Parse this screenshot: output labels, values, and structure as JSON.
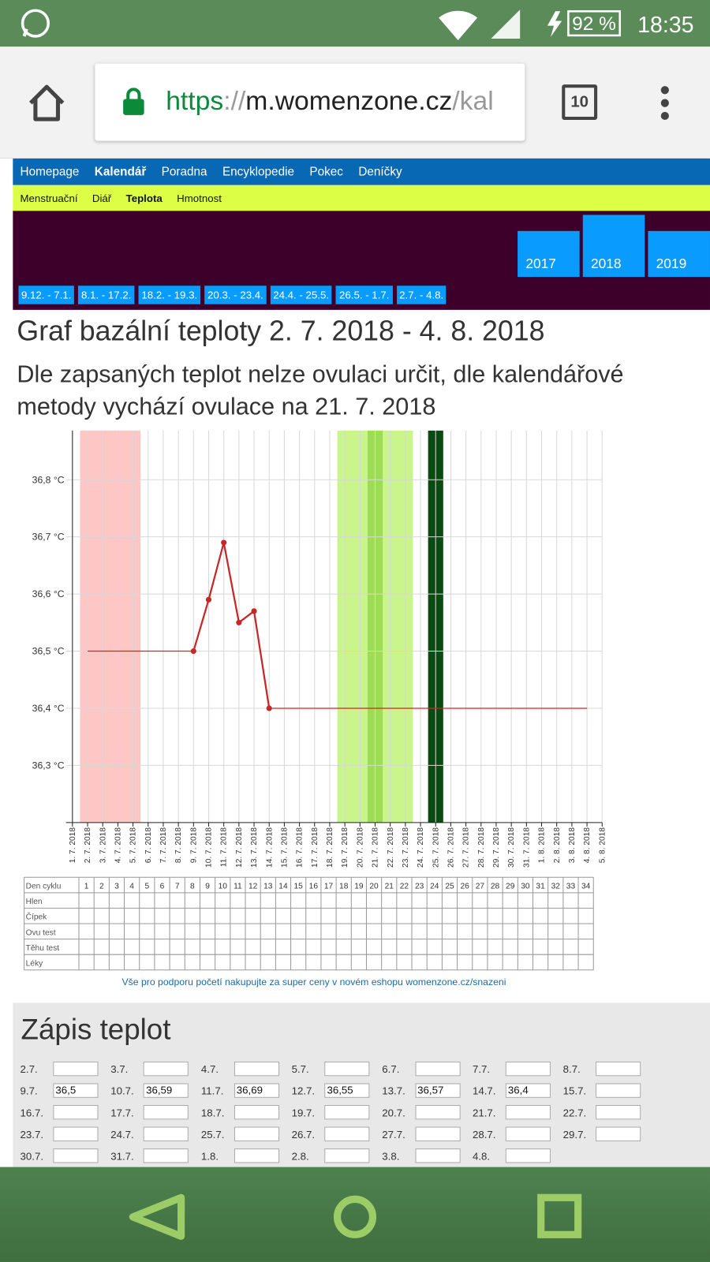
{
  "status_bar": {
    "battery": "92 %",
    "time": "18:35"
  },
  "browser": {
    "url": {
      "scheme": "https",
      "separator": "://",
      "host": "m.womenzone.cz",
      "path": "/kal"
    },
    "tabs": "10"
  },
  "nav": [
    {
      "label": "Homepage"
    },
    {
      "label": "Kalendář",
      "active": true
    },
    {
      "label": "Poradna"
    },
    {
      "label": "Encyklopedie"
    },
    {
      "label": "Pokec"
    },
    {
      "label": "Deníčky"
    }
  ],
  "subnav": [
    {
      "label": "Menstruační"
    },
    {
      "label": "Diář"
    },
    {
      "label": "Teplota",
      "active": true
    },
    {
      "label": "Hmotnost"
    }
  ],
  "years": [
    {
      "label": "2017"
    },
    {
      "label": "2018",
      "active": true
    },
    {
      "label": "2019"
    }
  ],
  "ranges": [
    "9.12. - 7.1.",
    "8.1. - 17.2.",
    "18.2. - 19.3.",
    "20.3. - 23.4.",
    "24.4. - 25.5.",
    "26.5. - 1.7.",
    "2.7. - 4.8."
  ],
  "title": "Graf bazální teploty 2. 7. 2018 - 4. 8. 2018",
  "subtitle": "Dle zapsaných teplot nelze ovulaci určit, dle kalendářové metody vychází ovulace na 21. 7. 2018",
  "chart_data": {
    "type": "line",
    "categories": [
      "1. 7. 2018",
      "2. 7. 2018",
      "3. 7. 2018",
      "4. 7. 2018",
      "5. 7. 2018",
      "6. 7. 2018",
      "7. 7. 2018",
      "8. 7. 2018",
      "9. 7. 2018",
      "10. 7. 2018",
      "11. 7. 2018",
      "12. 7. 2018",
      "13. 7. 2018",
      "14. 7. 2018",
      "15. 7. 2018",
      "16. 7. 2018",
      "17. 7. 2018",
      "18. 7. 2018",
      "19. 7. 2018",
      "20. 7. 2018",
      "21. 7. 2018",
      "22. 7. 2018",
      "23. 7. 2018",
      "24. 7. 2018",
      "25. 7. 2018",
      "26. 7. 2018",
      "27. 7. 2018",
      "28. 7. 2018",
      "29. 7. 2018",
      "30. 7. 2018",
      "31. 7. 2018",
      "1. 8. 2018",
      "2. 8. 2018",
      "3. 8. 2018",
      "4. 8. 2018",
      "5. 8. 2018"
    ],
    "series": [
      {
        "kind": "line",
        "color": "#c62828",
        "values": [
          null,
          36.5,
          36.5,
          36.5,
          36.5,
          36.5,
          36.5,
          36.5,
          36.5,
          36.59,
          36.69,
          36.55,
          36.57,
          36.4,
          36.4,
          36.4,
          36.4,
          36.4,
          36.4,
          36.4,
          36.4,
          36.4,
          36.4,
          36.4,
          36.4,
          36.4,
          36.4,
          36.4,
          36.4,
          36.4,
          36.4,
          36.4,
          36.4,
          36.4,
          36.4,
          null
        ]
      },
      {
        "kind": "points",
        "color": "#c62828",
        "values": [
          null,
          null,
          null,
          null,
          null,
          null,
          null,
          null,
          36.5,
          36.59,
          36.69,
          36.55,
          36.57,
          36.4,
          null,
          null,
          null,
          null,
          null,
          null,
          null,
          null,
          null,
          null,
          null,
          null,
          null,
          null,
          null,
          null,
          null,
          null,
          null,
          null,
          null,
          null
        ]
      }
    ],
    "bands": [
      {
        "from": 1,
        "to": 4,
        "color": "#ffc6c6"
      },
      {
        "from": 18,
        "to": 22,
        "color": "#c9f58c"
      },
      {
        "from": 20,
        "to": 20,
        "color": "#9fdc55"
      },
      {
        "from": 24,
        "to": 24,
        "color": "#0b4a10"
      }
    ],
    "ylim": [
      36.2,
      36.886
    ],
    "yticks": [
      {
        "value": 36.3,
        "label": "36,3 °C"
      },
      {
        "value": 36.4,
        "label": "36,4 °C"
      },
      {
        "value": 36.5,
        "label": "36,5 °C"
      },
      {
        "value": 36.6,
        "label": "36,6 °C"
      },
      {
        "value": 36.7,
        "label": "36,7 °C"
      },
      {
        "value": 36.8,
        "label": "36,8 °C"
      }
    ],
    "grid": true
  },
  "cycle_table": {
    "row_labels": [
      "Den cyklu",
      "Hlen",
      "Čípek",
      "Ovu test",
      "Těhu test",
      "Léky"
    ],
    "days": [
      1,
      2,
      3,
      4,
      5,
      6,
      7,
      8,
      9,
      10,
      11,
      12,
      13,
      14,
      15,
      16,
      17,
      18,
      19,
      20,
      21,
      22,
      23,
      24,
      25,
      26,
      27,
      28,
      29,
      30,
      31,
      32,
      33,
      34
    ]
  },
  "shop_note": "Vše pro podporu početí nakupujte za super ceny v novém eshopu womenzone.cz/snazeni",
  "entries": {
    "title": "Zápis teplot",
    "items": [
      {
        "date": "2.7."
      },
      {
        "date": "3.7."
      },
      {
        "date": "4.7."
      },
      {
        "date": "5.7."
      },
      {
        "date": "6.7."
      },
      {
        "date": "7.7."
      },
      {
        "date": "8.7."
      },
      {
        "date": "9.7.",
        "value": "36,5"
      },
      {
        "date": "10.7.",
        "value": "36,59"
      },
      {
        "date": "11.7.",
        "value": "36,69"
      },
      {
        "date": "12.7.",
        "value": "36,55"
      },
      {
        "date": "13.7.",
        "value": "36,57"
      },
      {
        "date": "14.7.",
        "value": "36,4"
      },
      {
        "date": "15.7."
      },
      {
        "date": "16.7."
      },
      {
        "date": "17.7."
      },
      {
        "date": "18.7."
      },
      {
        "date": "19.7."
      },
      {
        "date": "20.7."
      },
      {
        "date": "21.7."
      },
      {
        "date": "22.7."
      },
      {
        "date": "23.7."
      },
      {
        "date": "24.7."
      },
      {
        "date": "25.7."
      },
      {
        "date": "26.7."
      },
      {
        "date": "27.7."
      },
      {
        "date": "28.7."
      },
      {
        "date": "29.7."
      },
      {
        "date": "30.7."
      },
      {
        "date": "31.7."
      },
      {
        "date": "1.8."
      },
      {
        "date": "2.8."
      },
      {
        "date": "3.8."
      },
      {
        "date": "4.8."
      }
    ]
  }
}
